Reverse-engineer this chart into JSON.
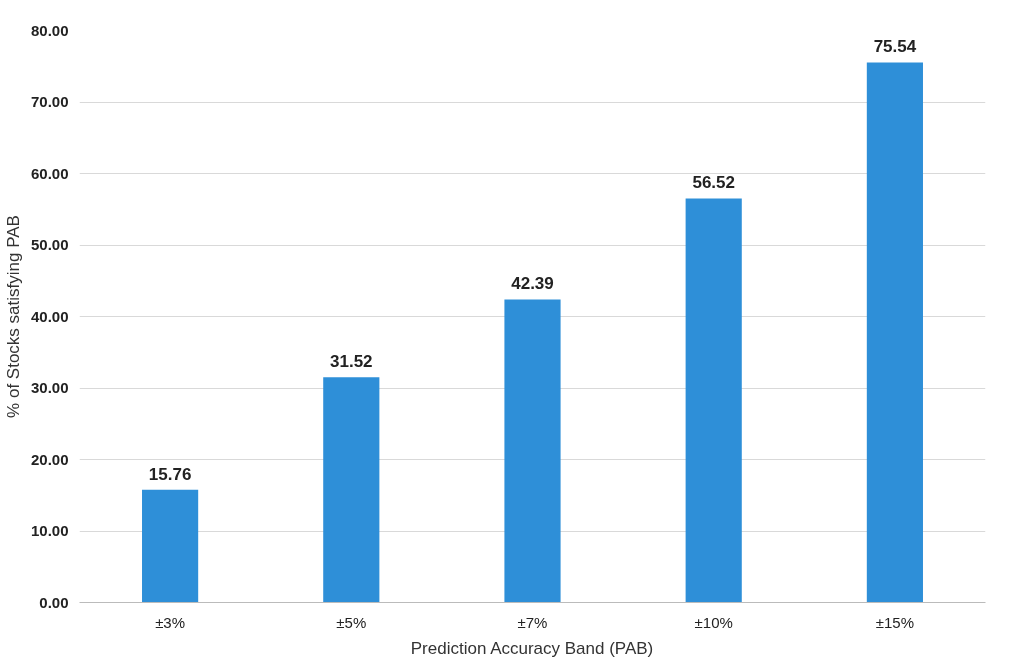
{
  "chart_data": {
    "type": "bar",
    "xlabel": "Prediction Accuracy Band (PAB)",
    "ylabel": "% of Stocks satisfying PAB",
    "categories": [
      "±3%",
      "±5%",
      "±7%",
      "±10%",
      "±15%"
    ],
    "values": [
      15.76,
      31.52,
      42.39,
      56.52,
      75.54
    ],
    "color": "#2e8fd8",
    "value_labels": [
      "15.76",
      "31.52",
      "42.39",
      "56.52",
      "75.54"
    ],
    "ylim": [
      0,
      80
    ],
    "yticks": [
      {
        "value": 0,
        "label": "0.00"
      },
      {
        "value": 10,
        "label": "10.00"
      },
      {
        "value": 20,
        "label": "20.00"
      },
      {
        "value": 30,
        "label": "30.00"
      },
      {
        "value": 40,
        "label": "40.00"
      },
      {
        "value": 50,
        "label": "50.00"
      },
      {
        "value": 60,
        "label": "60.00"
      },
      {
        "value": 70,
        "label": "70.00"
      },
      {
        "value": 80,
        "label": "80.00"
      }
    ],
    "grid": "y"
  }
}
